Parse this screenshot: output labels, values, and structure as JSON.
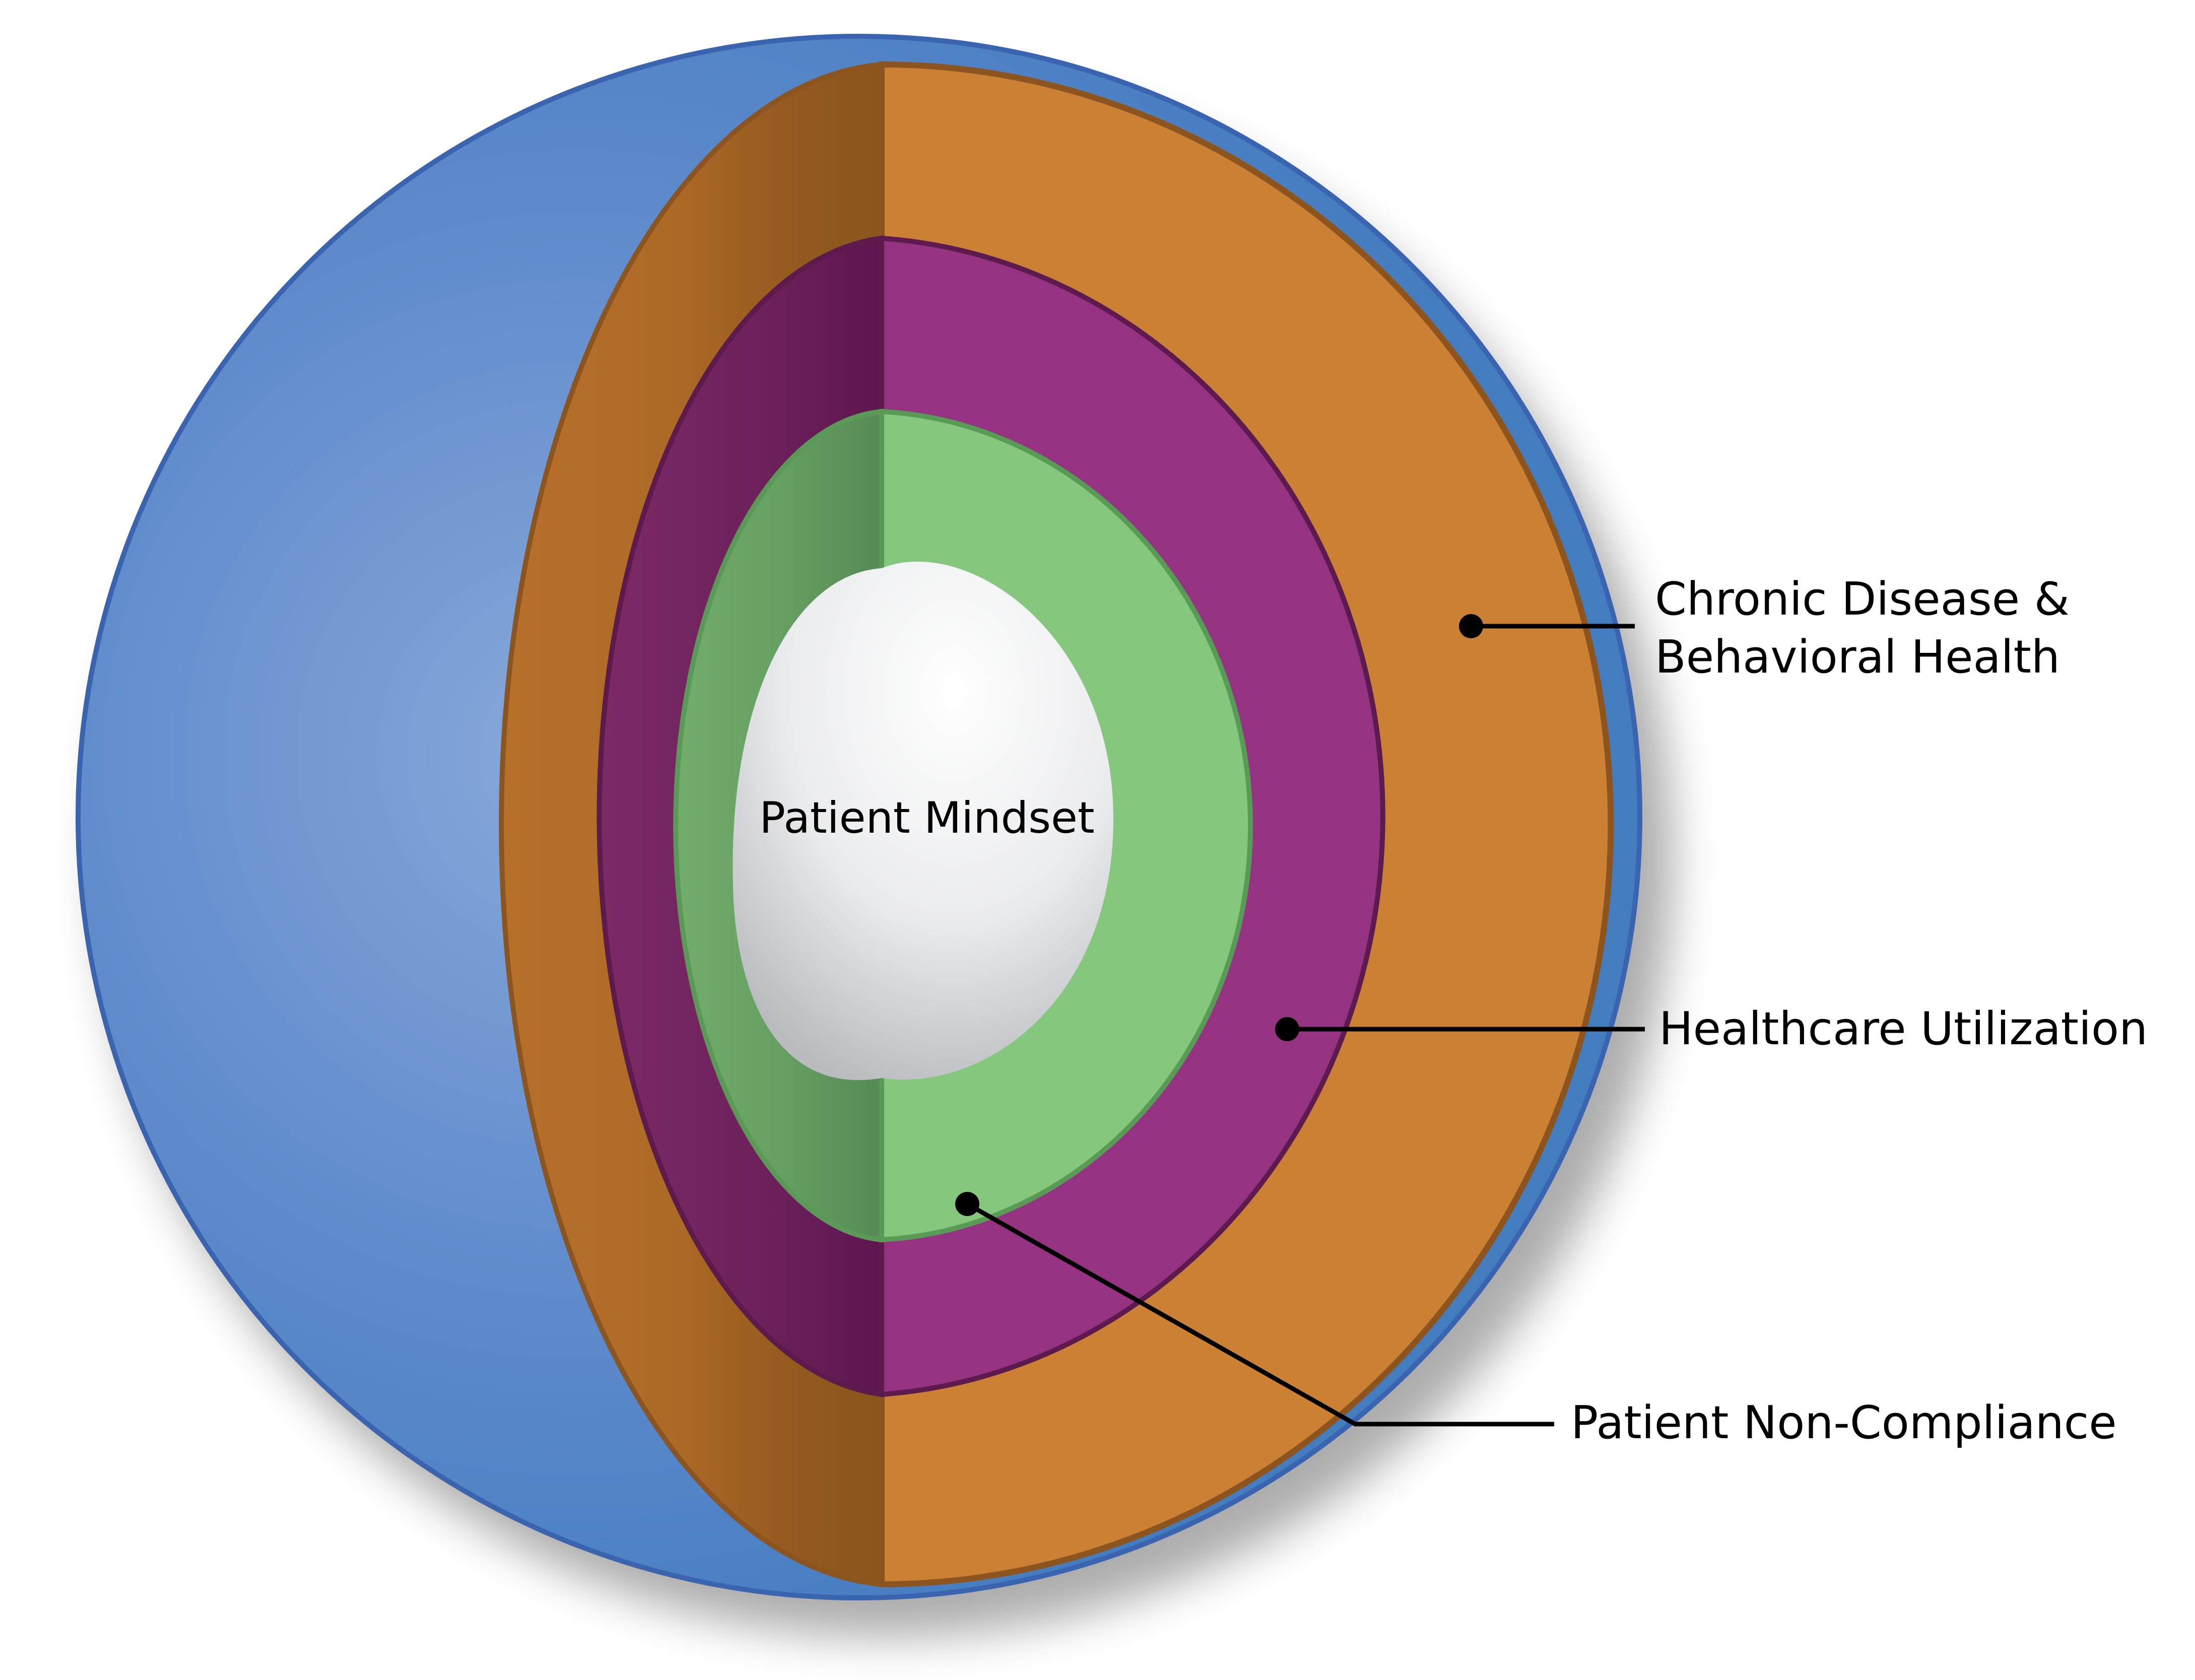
{
  "layers": [
    {
      "id": "outer-shell",
      "color": "#4a7fc3"
    },
    {
      "id": "chronic-disease",
      "color": "#cc8033"
    },
    {
      "id": "healthcare-utilization",
      "color": "#953382"
    },
    {
      "id": "non-compliance",
      "color": "#84c77d"
    },
    {
      "id": "core",
      "color": "#e8e9eb"
    }
  ],
  "labels": {
    "center": "Patient Mindset",
    "chronic_line1": "Chronic Disease &",
    "chronic_line2": "Behavioral Health",
    "utilization": "Healthcare Utilization",
    "non_compliance": "Patient Non-Compliance"
  }
}
